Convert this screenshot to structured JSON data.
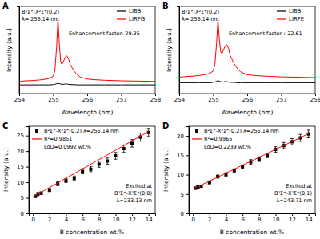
{
  "chart_data": [
    {
      "type": "line",
      "title": "A",
      "x_label": "Wavelength (nm)",
      "y_label": "Intensity (a.u.)",
      "x": [
        254.0,
        254.2,
        254.4,
        254.6,
        254.8,
        254.9,
        255.0,
        255.05,
        255.1,
        255.14,
        255.18,
        255.22,
        255.26,
        255.3,
        255.35,
        255.4,
        255.45,
        255.5,
        255.6,
        255.7,
        255.8,
        256.0,
        256.2,
        256.5,
        257.0,
        257.5,
        258.0
      ],
      "series": [
        {
          "name": "LIBS",
          "color": "#000000",
          "values": [
            0.3,
            0.3,
            0.3,
            0.3,
            0.3,
            0.3,
            0.31,
            0.32,
            0.34,
            0.36,
            0.34,
            0.33,
            0.32,
            0.32,
            0.33,
            0.33,
            0.32,
            0.31,
            0.31,
            0.3,
            0.3,
            0.3,
            0.3,
            0.3,
            0.3,
            0.3,
            0.3
          ]
        },
        {
          "name": "LIRFG",
          "color": "#ff0000",
          "values": [
            0.42,
            0.44,
            0.45,
            0.47,
            0.5,
            0.53,
            0.6,
            0.8,
            1.6,
            2.6,
            1.7,
            1.1,
            1.0,
            1.1,
            1.25,
            1.3,
            1.2,
            1.0,
            0.8,
            0.65,
            0.57,
            0.5,
            0.48,
            0.46,
            0.44,
            0.43,
            0.42
          ]
        }
      ],
      "xlim": [
        254,
        258
      ],
      "xticks": [
        254,
        255,
        256,
        257,
        258
      ],
      "ylim": [
        0,
        3.0
      ],
      "tick_labels": "x",
      "legend": "top-right",
      "annotations": [
        "B²Σ⁺-X²Σ⁺(0,2)",
        "λ= 255.14 nm",
        "Enhancement factor: 29.35"
      ]
    },
    {
      "type": "line",
      "title": "B",
      "x_label": "Wavelength (nm)",
      "y_label": "Intensity (a.u.)",
      "x": [
        254.0,
        254.2,
        254.4,
        254.6,
        254.8,
        254.9,
        255.0,
        255.05,
        255.1,
        255.14,
        255.18,
        255.22,
        255.26,
        255.3,
        255.35,
        255.4,
        255.45,
        255.5,
        255.6,
        255.7,
        255.8,
        256.0,
        256.2,
        256.5,
        257.0,
        257.5,
        258.0
      ],
      "series": [
        {
          "name": "LIBS",
          "color": "#000000",
          "values": [
            0.3,
            0.3,
            0.3,
            0.3,
            0.3,
            0.3,
            0.31,
            0.32,
            0.34,
            0.36,
            0.34,
            0.33,
            0.32,
            0.32,
            0.33,
            0.33,
            0.32,
            0.31,
            0.31,
            0.3,
            0.3,
            0.3,
            0.3,
            0.3,
            0.3,
            0.3,
            0.3
          ]
        },
        {
          "name": "LIRFE",
          "color": "#ff0000",
          "values": [
            0.45,
            0.47,
            0.48,
            0.5,
            0.53,
            0.56,
            0.62,
            0.8,
            1.4,
            2.05,
            1.5,
            1.15,
            1.1,
            1.2,
            1.3,
            1.35,
            1.25,
            1.05,
            0.85,
            0.7,
            0.6,
            0.52,
            0.5,
            0.48,
            0.46,
            0.45,
            0.44
          ]
        }
      ],
      "xlim": [
        254,
        258
      ],
      "xticks": [
        254,
        255,
        256,
        257,
        258
      ],
      "ylim": [
        0,
        2.4
      ],
      "tick_labels": "x",
      "legend": "top-right",
      "annotations": [
        "B²Σ⁺-X²Σ⁺(0,2)",
        "λ= 255.14 nm",
        "Enhancement factor：22.61"
      ]
    },
    {
      "type": "scatter",
      "title": "C",
      "x_label": "B concentration wt.%",
      "y_label": "Intensity (a.u.)",
      "series": [
        {
          "name": "B²Σ⁺-X²Σ⁺(0,2) λ=255.14 nm",
          "type": "scatter",
          "marker": "square",
          "color": "#000000",
          "x": [
            0.3,
            0.6,
            1,
            2,
            3,
            4,
            5,
            6,
            7,
            8,
            9,
            10,
            11,
            12,
            13,
            14
          ],
          "values": [
            5.5,
            6.2,
            6.5,
            7.5,
            9.5,
            10.5,
            11.3,
            13.5,
            14.2,
            15.8,
            16.8,
            18.5,
            20.8,
            22.5,
            24.5,
            26.0
          ],
          "errors": [
            0.4,
            0.5,
            0.4,
            0.5,
            0.6,
            0.6,
            0.7,
            0.8,
            0.8,
            1.0,
            1.0,
            1.1,
            1.2,
            1.2,
            1.3,
            1.3
          ]
        },
        {
          "name": "R²=0.9851",
          "type": "line",
          "color": "#ff0000",
          "x": [
            0,
            14
          ],
          "values": [
            5.3,
            26.3
          ]
        }
      ],
      "xlim": [
        -0.5,
        14.8
      ],
      "xticks": [
        0,
        2,
        4,
        6,
        8,
        10,
        12,
        14
      ],
      "ylim": [
        0,
        28
      ],
      "yticks": [
        0,
        5,
        10,
        15,
        20,
        25
      ],
      "legend": "top-left",
      "annotations": [
        "LoD=0.0992 wt.%",
        "Excited at",
        "B²Σ⁺-X²Σ⁺(0,0)",
        "λ=233.13 nm"
      ]
    },
    {
      "type": "scatter",
      "title": "D",
      "x_label": "B concentration wt.%",
      "y_label": "Intensity (a.u.)",
      "series": [
        {
          "name": "B²Σ⁺-X²Σ⁺(0,2) λ=255.14 nm",
          "type": "scatter",
          "marker": "square",
          "color": "#000000",
          "x": [
            0.3,
            0.6,
            1,
            2,
            3,
            4,
            5,
            6,
            7,
            8,
            9,
            10,
            11,
            12,
            13,
            14
          ],
          "values": [
            6.5,
            6.8,
            7.0,
            8.0,
            9.5,
            10.0,
            11.0,
            12.0,
            13.3,
            14.0,
            15.0,
            16.5,
            17.5,
            18.5,
            19.5,
            20.5
          ],
          "errors": [
            0.3,
            0.3,
            0.3,
            0.4,
            0.4,
            0.5,
            0.5,
            0.5,
            0.6,
            0.6,
            0.6,
            0.7,
            0.8,
            0.8,
            0.9,
            1.0
          ]
        },
        {
          "name": "R²=0.9965",
          "type": "line",
          "color": "#ff0000",
          "x": [
            0,
            14
          ],
          "values": [
            6.3,
            20.6
          ]
        }
      ],
      "xlim": [
        -0.5,
        14.8
      ],
      "xticks": [
        0,
        2,
        4,
        6,
        8,
        10,
        12,
        14
      ],
      "ylim": [
        0,
        22.5
      ],
      "yticks": [
        0,
        5,
        10,
        15,
        20
      ],
      "legend": "top-left",
      "annotations": [
        "LoD=0.2239 wt.%",
        "Excited at",
        "B²Σ⁺-X²Σ⁺(0,1)",
        "λ=243.71 nm"
      ]
    }
  ]
}
